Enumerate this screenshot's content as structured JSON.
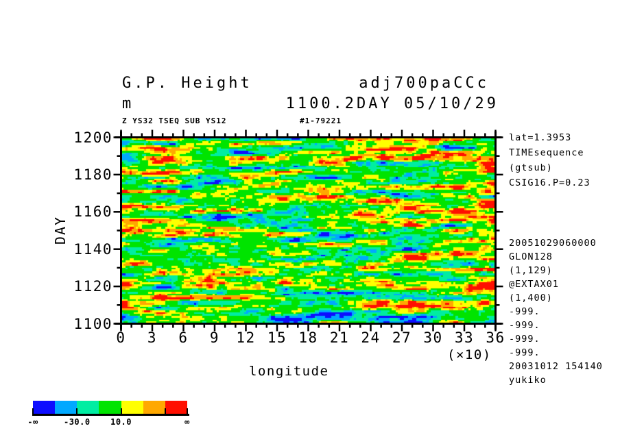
{
  "header": {
    "title_left": "G.P. Height",
    "title_right": "adj700paCCc",
    "units": "m",
    "subtitle_right": "1100.2DAY 05/10/29",
    "meta_left": "Z YS32 TSEQ SUB YS12",
    "meta_right": "#1-79221"
  },
  "side_notes": {
    "top": [
      "lat=1.3953",
      "TIMEsequence",
      "(gtsub)",
      "CSIG16.P=0.23"
    ],
    "bottom": [
      "20051029060000",
      "GLON128",
      "(1,129)",
      "@EXTAX01",
      "(1,400)",
      "-999.",
      "-999.",
      "-999.",
      "-999.",
      "20031012 154140",
      "yukiko"
    ]
  },
  "chart_data": {
    "type": "heatmap",
    "title": "G.P. Height  adj700paCCc",
    "subtitle": "1100.2DAY 05/10/29",
    "xlabel": "longitude",
    "x_unit_note": "(×10)",
    "ylabel": "DAY",
    "x": {
      "min": 0,
      "max": 36,
      "major_step": 3,
      "minor_step": 1,
      "tick_labels": [
        "0",
        "3",
        "6",
        "9",
        "12",
        "15",
        "18",
        "21",
        "24",
        "27",
        "30",
        "33",
        "36"
      ]
    },
    "y": {
      "min": 1100,
      "max": 1200,
      "major_step": 20,
      "minor_step": 10,
      "tick_labels": [
        "1200",
        "1180",
        "1160",
        "1140",
        "1120",
        "1100"
      ]
    },
    "palette": {
      "colors": [
        "#0d0dff",
        "#00a8ff",
        "#00eda2",
        "#00e400",
        "#ffff00",
        "#ffa800",
        "#ff0f00"
      ],
      "levels": [
        -50,
        -30,
        -10,
        10,
        30,
        50
      ]
    },
    "grid": false,
    "legend_position": "bottom-left",
    "field_description": "horizontally streaked anomaly field: mostly green and mint, frequent yellow streaks, sparse orange/red and rare blue/sky-blue streaks"
  },
  "colorbar": {
    "ticks": [
      0,
      2,
      4,
      6,
      7
    ],
    "labels": [
      {
        "boundary": 0,
        "text": "-∞"
      },
      {
        "boundary": 2,
        "text": "-30.0"
      },
      {
        "boundary": 4,
        "text": "10.0"
      },
      {
        "boundary": 7,
        "text": "∞"
      }
    ]
  }
}
